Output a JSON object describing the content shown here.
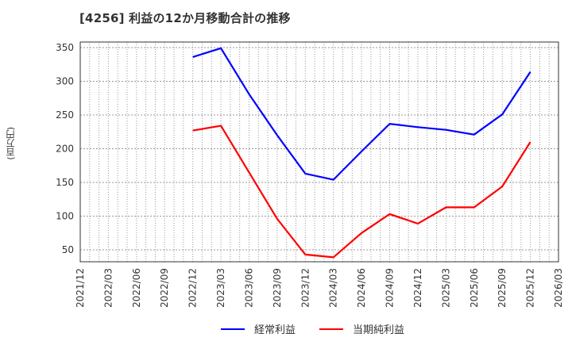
{
  "title": "[4256]  利益の12か月移動合計の推移",
  "y_unit_label": "(百万円)",
  "colors": {
    "series_0": "#0000ff",
    "series_1": "#ff0000",
    "grid": "#999999",
    "axis": "#333333"
  },
  "legend": [
    {
      "label": "経常利益",
      "color": "#0000ff"
    },
    {
      "label": "当期純利益",
      "color": "#ff0000"
    }
  ],
  "chart_data": {
    "type": "line",
    "title": "[4256]  利益の12か月移動合計の推移",
    "xlabel": "",
    "ylabel": "(百万円)",
    "ylim": [
      30,
      357
    ],
    "yticks": [
      50,
      100,
      150,
      200,
      250,
      300,
      350
    ],
    "x_ticks": [
      "2021/12",
      "2022/03",
      "2022/06",
      "2022/09",
      "2022/12",
      "2023/03",
      "2023/06",
      "2023/09",
      "2023/12",
      "2024/03",
      "2024/06",
      "2024/09",
      "2024/12",
      "2025/03",
      "2025/06",
      "2025/09",
      "2025/12",
      "2026/03"
    ],
    "grid": true,
    "legend_position": "bottom",
    "series": [
      {
        "name": "経常利益",
        "color": "#0000ff",
        "x": [
          "2022/12",
          "2023/03",
          "2023/06",
          "2023/09",
          "2023/12",
          "2024/03",
          "2024/06",
          "2024/09",
          "2024/12",
          "2025/03",
          "2025/06",
          "2025/09",
          "2025/12"
        ],
        "values": [
          336,
          349,
          281,
          220,
          163,
          154,
          196,
          237,
          232,
          228,
          221,
          251,
          314
        ]
      },
      {
        "name": "当期純利益",
        "color": "#ff0000",
        "x": [
          "2022/12",
          "2023/03",
          "2023/06",
          "2023/09",
          "2023/12",
          "2024/03",
          "2024/06",
          "2024/09",
          "2024/12",
          "2025/03",
          "2025/06",
          "2025/09",
          "2025/12"
        ],
        "values": [
          227,
          234,
          165,
          96,
          43,
          39,
          75,
          103,
          89,
          113,
          113,
          144,
          210
        ]
      }
    ]
  }
}
